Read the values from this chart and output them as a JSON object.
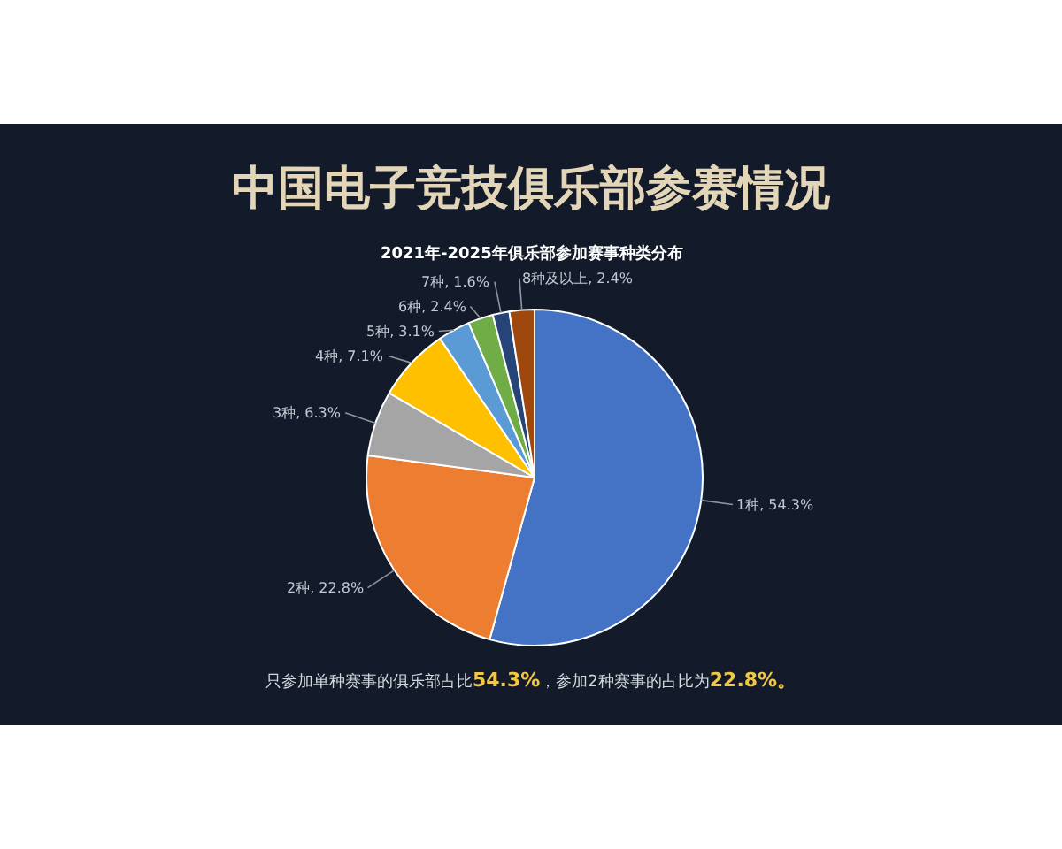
{
  "chart_data": {
    "type": "pie",
    "title": "中国电子竞技俱乐部参赛情况",
    "subtitle": "2021年-2025年俱乐部参加赛事种类分布",
    "categories": [
      "1种",
      "2种",
      "3种",
      "4种",
      "5种",
      "6种",
      "7种",
      "8种及以上"
    ],
    "values": [
      54.3,
      22.8,
      6.3,
      7.1,
      3.1,
      2.4,
      1.6,
      2.4
    ],
    "colors": [
      "#4472c4",
      "#ed7d31",
      "#a5a5a5",
      "#ffc000",
      "#5b9bd5",
      "#70ad47",
      "#264478",
      "#9e480e"
    ],
    "value_labels": [
      "54.3%",
      "22.8%",
      "6.3%",
      "7.1%",
      "3.1%",
      "2.4%",
      "1.6%",
      "2.4%"
    ],
    "annotations": [
      "只参加单种赛事的俱乐部占比54.3%，参加2种赛事的占比为22.8%。"
    ],
    "legend": false
  }
}
